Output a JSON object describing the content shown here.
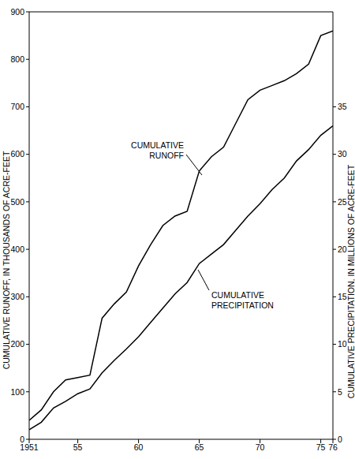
{
  "chart_data": {
    "type": "line",
    "y_label": "CUMULATIVE RUNOFF, IN THOUSANDS OF ACRE-FEET",
    "y2_label": "CUMULATIVE PRECIPITATION, IN MILLIONS OF ACRE-FEET",
    "x": [
      1951,
      1952,
      1953,
      1954,
      1955,
      1956,
      1957,
      1958,
      1959,
      1960,
      1961,
      1962,
      1963,
      1964,
      1965,
      1966,
      1967,
      1968,
      1969,
      1970,
      1971,
      1972,
      1973,
      1974,
      1975,
      1976
    ],
    "series": [
      {
        "name": "CUMULATIVE RUNOFF",
        "color": "#000000",
        "values": [
          40,
          62,
          100,
          125,
          130,
          135,
          255,
          285,
          310,
          365,
          410,
          450,
          470,
          480,
          565,
          595,
          615,
          665,
          715,
          735,
          745,
          755,
          770,
          790,
          850,
          860
        ]
      },
      {
        "name": "CUMULATIVE PRECIPITATION",
        "color": "#000000",
        "axis": "y2",
        "values": [
          1.0,
          1.8,
          3.3,
          4.0,
          4.8,
          5.3,
          7.0,
          8.3,
          9.5,
          10.8,
          12.3,
          13.8,
          15.3,
          16.5,
          18.5,
          19.5,
          20.5,
          22.0,
          23.5,
          24.8,
          26.3,
          27.5,
          29.3,
          30.5,
          32.0,
          33.0
        ]
      }
    ],
    "xlim": [
      1951,
      1976
    ],
    "xticks": [
      1951,
      {
        "value": 1955,
        "label": "55"
      },
      {
        "value": 1960,
        "label": "60"
      },
      {
        "value": 1965,
        "label": "65"
      },
      {
        "value": 1970,
        "label": "70"
      },
      {
        "value": 1975,
        "label": "75"
      },
      {
        "value": 1976,
        "label": "76"
      }
    ],
    "ylim": [
      0,
      900
    ],
    "yticks": [
      0,
      100,
      200,
      300,
      400,
      500,
      600,
      700,
      800,
      900
    ],
    "y2lim": [
      0,
      45
    ],
    "y2ticks": [
      0,
      5,
      10,
      15,
      20,
      25,
      30,
      35
    ],
    "grid": false
  }
}
